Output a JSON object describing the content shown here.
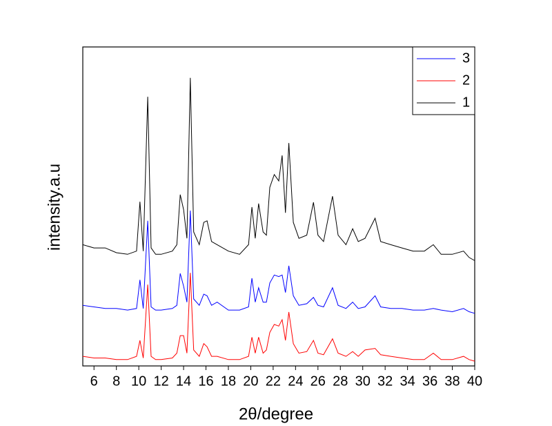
{
  "chart_data": {
    "type": "line",
    "xlabel": "2θ/degree",
    "ylabel": "intensity.a.u",
    "x": [
      5,
      6,
      7,
      8,
      9,
      9.8,
      10.1,
      10.4,
      10.8,
      11.1,
      11.5,
      12,
      13,
      13.4,
      13.7,
      14.0,
      14.3,
      14.6,
      14.9,
      15.4,
      15.8,
      16.1,
      16.5,
      17,
      18,
      19,
      19.8,
      20.1,
      20.4,
      20.7,
      21.1,
      21.4,
      21.7,
      22.1,
      22.5,
      22.8,
      23.1,
      23.4,
      23.8,
      24.3,
      25,
      25.6,
      26,
      26.5,
      27.3,
      27.8,
      28.5,
      29.1,
      29.6,
      30.2,
      31.1,
      31.6,
      32.5,
      33.5,
      34.5,
      35.5,
      36.3,
      37,
      38,
      39,
      39.5,
      40
    ],
    "series": [
      {
        "name": "3",
        "color": "#0000ff",
        "values": [
          19,
          18.5,
          18,
          18,
          17.5,
          18,
          27,
          18,
          45.5,
          18.5,
          17.5,
          17.5,
          18,
          19,
          29,
          25,
          20,
          48.7,
          21,
          19,
          22.5,
          22,
          19,
          20,
          17.5,
          17.5,
          18.5,
          27.5,
          20,
          24.5,
          20,
          20,
          26,
          28.5,
          28,
          28.5,
          23,
          31.4,
          22,
          19,
          19.5,
          21.5,
          19,
          18.5,
          24.5,
          19,
          18,
          20,
          18,
          18.5,
          22,
          18.5,
          18,
          18,
          17.5,
          17.5,
          18,
          17.5,
          17,
          18,
          17,
          16.5
        ]
      },
      {
        "name": "2",
        "color": "#ff0000",
        "values": [
          3,
          2.5,
          2.5,
          2,
          2,
          3,
          8,
          2.5,
          25.5,
          3,
          2,
          2,
          2.5,
          4,
          9.5,
          9.5,
          4,
          29.2,
          5,
          3,
          7,
          6,
          3,
          3,
          2,
          2,
          3,
          9,
          4,
          9,
          4,
          5,
          10.5,
          13,
          12.5,
          14.5,
          8,
          16.9,
          7,
          4,
          4.5,
          8,
          4,
          3.5,
          8.5,
          4,
          3,
          4.5,
          3,
          5,
          5.5,
          3.5,
          3,
          2.5,
          2,
          2,
          4,
          2,
          2,
          3,
          2,
          1.5
        ]
      },
      {
        "name": "1",
        "color": "#000000",
        "values": [
          38,
          37,
          37,
          35.5,
          35,
          36,
          51.5,
          36,
          84.4,
          37,
          35,
          35,
          36,
          38,
          53.7,
          49,
          40,
          90.3,
          42,
          38,
          45,
          45.5,
          39,
          38,
          36,
          35,
          38,
          49.8,
          40,
          50.9,
          42,
          41,
          56,
          60,
          58,
          66,
          48,
          69.9,
          45,
          40,
          41,
          51.3,
          41,
          39,
          53.2,
          41,
          38,
          43,
          39,
          40,
          46.3,
          39,
          38,
          37,
          36,
          36,
          38,
          35,
          35,
          36,
          34,
          33
        ]
      }
    ],
    "xlim": [
      5,
      40
    ],
    "xticks": [
      6,
      8,
      10,
      12,
      14,
      16,
      18,
      20,
      22,
      24,
      26,
      28,
      30,
      32,
      34,
      36,
      38,
      40
    ],
    "ylim": [
      0,
      100
    ],
    "legend": "upper right"
  }
}
